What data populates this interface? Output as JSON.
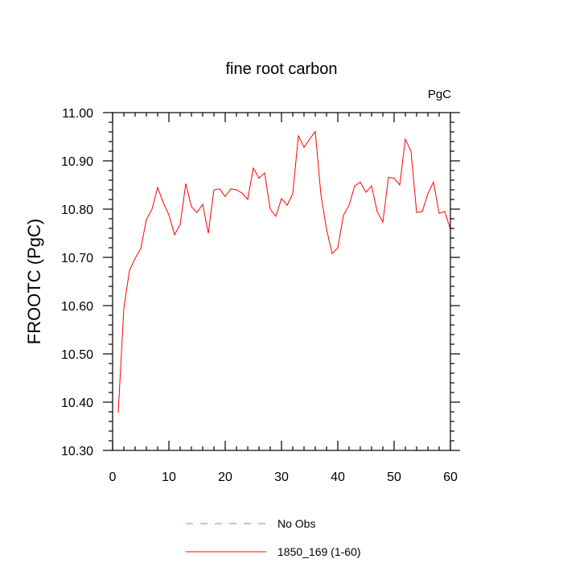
{
  "chart_data": {
    "type": "line",
    "title": "fine root carbon",
    "units": "PgC",
    "xlabel": "",
    "ylabel": "FROOTC  (PgC)",
    "xlim": [
      0,
      60
    ],
    "ylim": [
      10.3,
      11.0
    ],
    "x_ticks": [
      0,
      10,
      20,
      30,
      40,
      50,
      60
    ],
    "x_tick_labels": [
      "0",
      "10",
      "20",
      "30",
      "40",
      "50",
      "60"
    ],
    "y_ticks": [
      10.3,
      10.4,
      10.5,
      10.6,
      10.7,
      10.8,
      10.9,
      11.0
    ],
    "y_tick_labels": [
      "10.30",
      "10.40",
      "10.50",
      "10.60",
      "10.70",
      "10.80",
      "10.90",
      "11.00"
    ],
    "legend_position": "bottom",
    "series": [
      {
        "name": "No Obs",
        "color": "#8080ff",
        "style": "dashed",
        "x": [],
        "values": []
      },
      {
        "name": "1850_169 (1-60)",
        "color": "#ff0000",
        "style": "solid",
        "x": [
          1,
          2,
          3,
          4,
          5,
          6,
          7,
          8,
          9,
          10,
          11,
          12,
          13,
          14,
          15,
          16,
          17,
          18,
          19,
          20,
          21,
          22,
          23,
          24,
          25,
          26,
          27,
          28,
          29,
          30,
          31,
          32,
          33,
          34,
          35,
          36,
          37,
          38,
          39,
          40,
          41,
          42,
          43,
          44,
          45,
          46,
          47,
          48,
          49,
          50,
          51,
          52,
          53,
          54,
          55,
          56,
          57,
          58,
          59,
          60
        ],
        "values": [
          10.378,
          10.595,
          10.673,
          10.698,
          10.718,
          10.778,
          10.8,
          10.845,
          10.813,
          10.788,
          10.747,
          10.768,
          10.853,
          10.805,
          10.793,
          10.81,
          10.75,
          10.84,
          10.842,
          10.826,
          10.842,
          10.84,
          10.833,
          10.82,
          10.885,
          10.864,
          10.875,
          10.8,
          10.785,
          10.822,
          10.808,
          10.832,
          10.952,
          10.928,
          10.945,
          10.961,
          10.83,
          10.758,
          10.708,
          10.72,
          10.787,
          10.808,
          10.848,
          10.856,
          10.835,
          10.848,
          10.795,
          10.773,
          10.866,
          10.864,
          10.85,
          10.945,
          10.92,
          10.793,
          10.795,
          10.832,
          10.856,
          10.791,
          10.795,
          10.758
        ]
      }
    ]
  }
}
